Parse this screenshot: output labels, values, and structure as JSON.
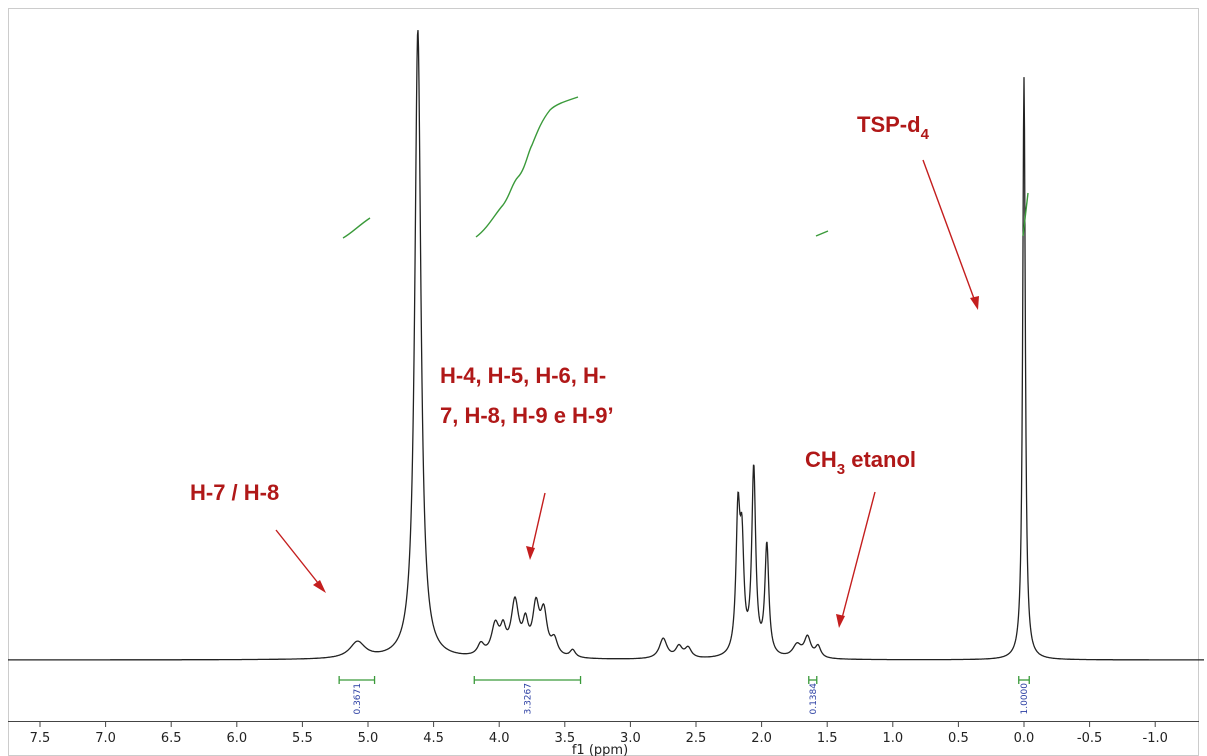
{
  "chart_data": {
    "type": "line",
    "xlabel": "f1 (ppm)",
    "xlim": [
      7.75,
      -1.45
    ],
    "x_reversed": true,
    "ticks": [
      "7.5",
      "7.0",
      "6.5",
      "6.0",
      "5.5",
      "5.0",
      "4.5",
      "4.0",
      "3.5",
      "3.0",
      "2.5",
      "2.0",
      "1.5",
      "1.0",
      "0.5",
      "0.0",
      "-0.5",
      "-1.0"
    ],
    "tick_values": [
      7.5,
      7.0,
      6.5,
      6.0,
      5.5,
      5.0,
      4.5,
      4.0,
      3.5,
      3.0,
      2.5,
      2.0,
      1.5,
      1.0,
      0.5,
      0.0,
      -0.5,
      -1.0
    ],
    "peaks": [
      {
        "x": 5.08,
        "h": 0.026,
        "w": 0.07
      },
      {
        "x": 4.62,
        "h": 1.0,
        "w": 0.028
      },
      {
        "x": 4.14,
        "h": 0.018,
        "w": 0.03
      },
      {
        "x": 4.03,
        "h": 0.048,
        "w": 0.035
      },
      {
        "x": 3.97,
        "h": 0.035,
        "w": 0.025
      },
      {
        "x": 3.88,
        "h": 0.085,
        "w": 0.035
      },
      {
        "x": 3.8,
        "h": 0.045,
        "w": 0.025
      },
      {
        "x": 3.72,
        "h": 0.075,
        "w": 0.03
      },
      {
        "x": 3.66,
        "h": 0.065,
        "w": 0.03
      },
      {
        "x": 3.58,
        "h": 0.025,
        "w": 0.03
      },
      {
        "x": 3.44,
        "h": 0.012,
        "w": 0.025
      },
      {
        "x": 2.75,
        "h": 0.032,
        "w": 0.035
      },
      {
        "x": 2.63,
        "h": 0.018,
        "w": 0.03
      },
      {
        "x": 2.56,
        "h": 0.016,
        "w": 0.03
      },
      {
        "x": 2.18,
        "h": 0.215,
        "w": 0.018
      },
      {
        "x": 2.15,
        "h": 0.16,
        "w": 0.018
      },
      {
        "x": 2.06,
        "h": 0.295,
        "w": 0.018
      },
      {
        "x": 1.96,
        "h": 0.175,
        "w": 0.018
      },
      {
        "x": 1.73,
        "h": 0.02,
        "w": 0.04
      },
      {
        "x": 1.65,
        "h": 0.032,
        "w": 0.03
      },
      {
        "x": 1.57,
        "h": 0.018,
        "w": 0.025
      },
      {
        "x": 0.0,
        "h": 0.925,
        "w": 0.012
      }
    ],
    "integrals": [
      {
        "from": 5.22,
        "to": 4.95,
        "value": "0.3671"
      },
      {
        "from": 4.19,
        "to": 3.38,
        "value": "3.3267"
      },
      {
        "from": 1.64,
        "to": 1.58,
        "value": "0.1384"
      },
      {
        "from": 0.04,
        "to": -0.04,
        "value": "1.0000"
      }
    ],
    "annotations": {
      "h7h8": "H-7 / H-8",
      "h4_line1": "H-4, H-5, H-6, H-",
      "h4_line2": "7, H-8, H-9 e H-9’",
      "ch3_base": "CH",
      "ch3_sub": "3",
      "ch3_rest": " etanol",
      "tsp_base": "TSP-d",
      "tsp_sub": "4"
    },
    "colors": {
      "spectrum": "#222222",
      "integral_curve": "#3a9a3a",
      "integral_label": "#2b3fa3",
      "annotation": "#b01818"
    }
  }
}
